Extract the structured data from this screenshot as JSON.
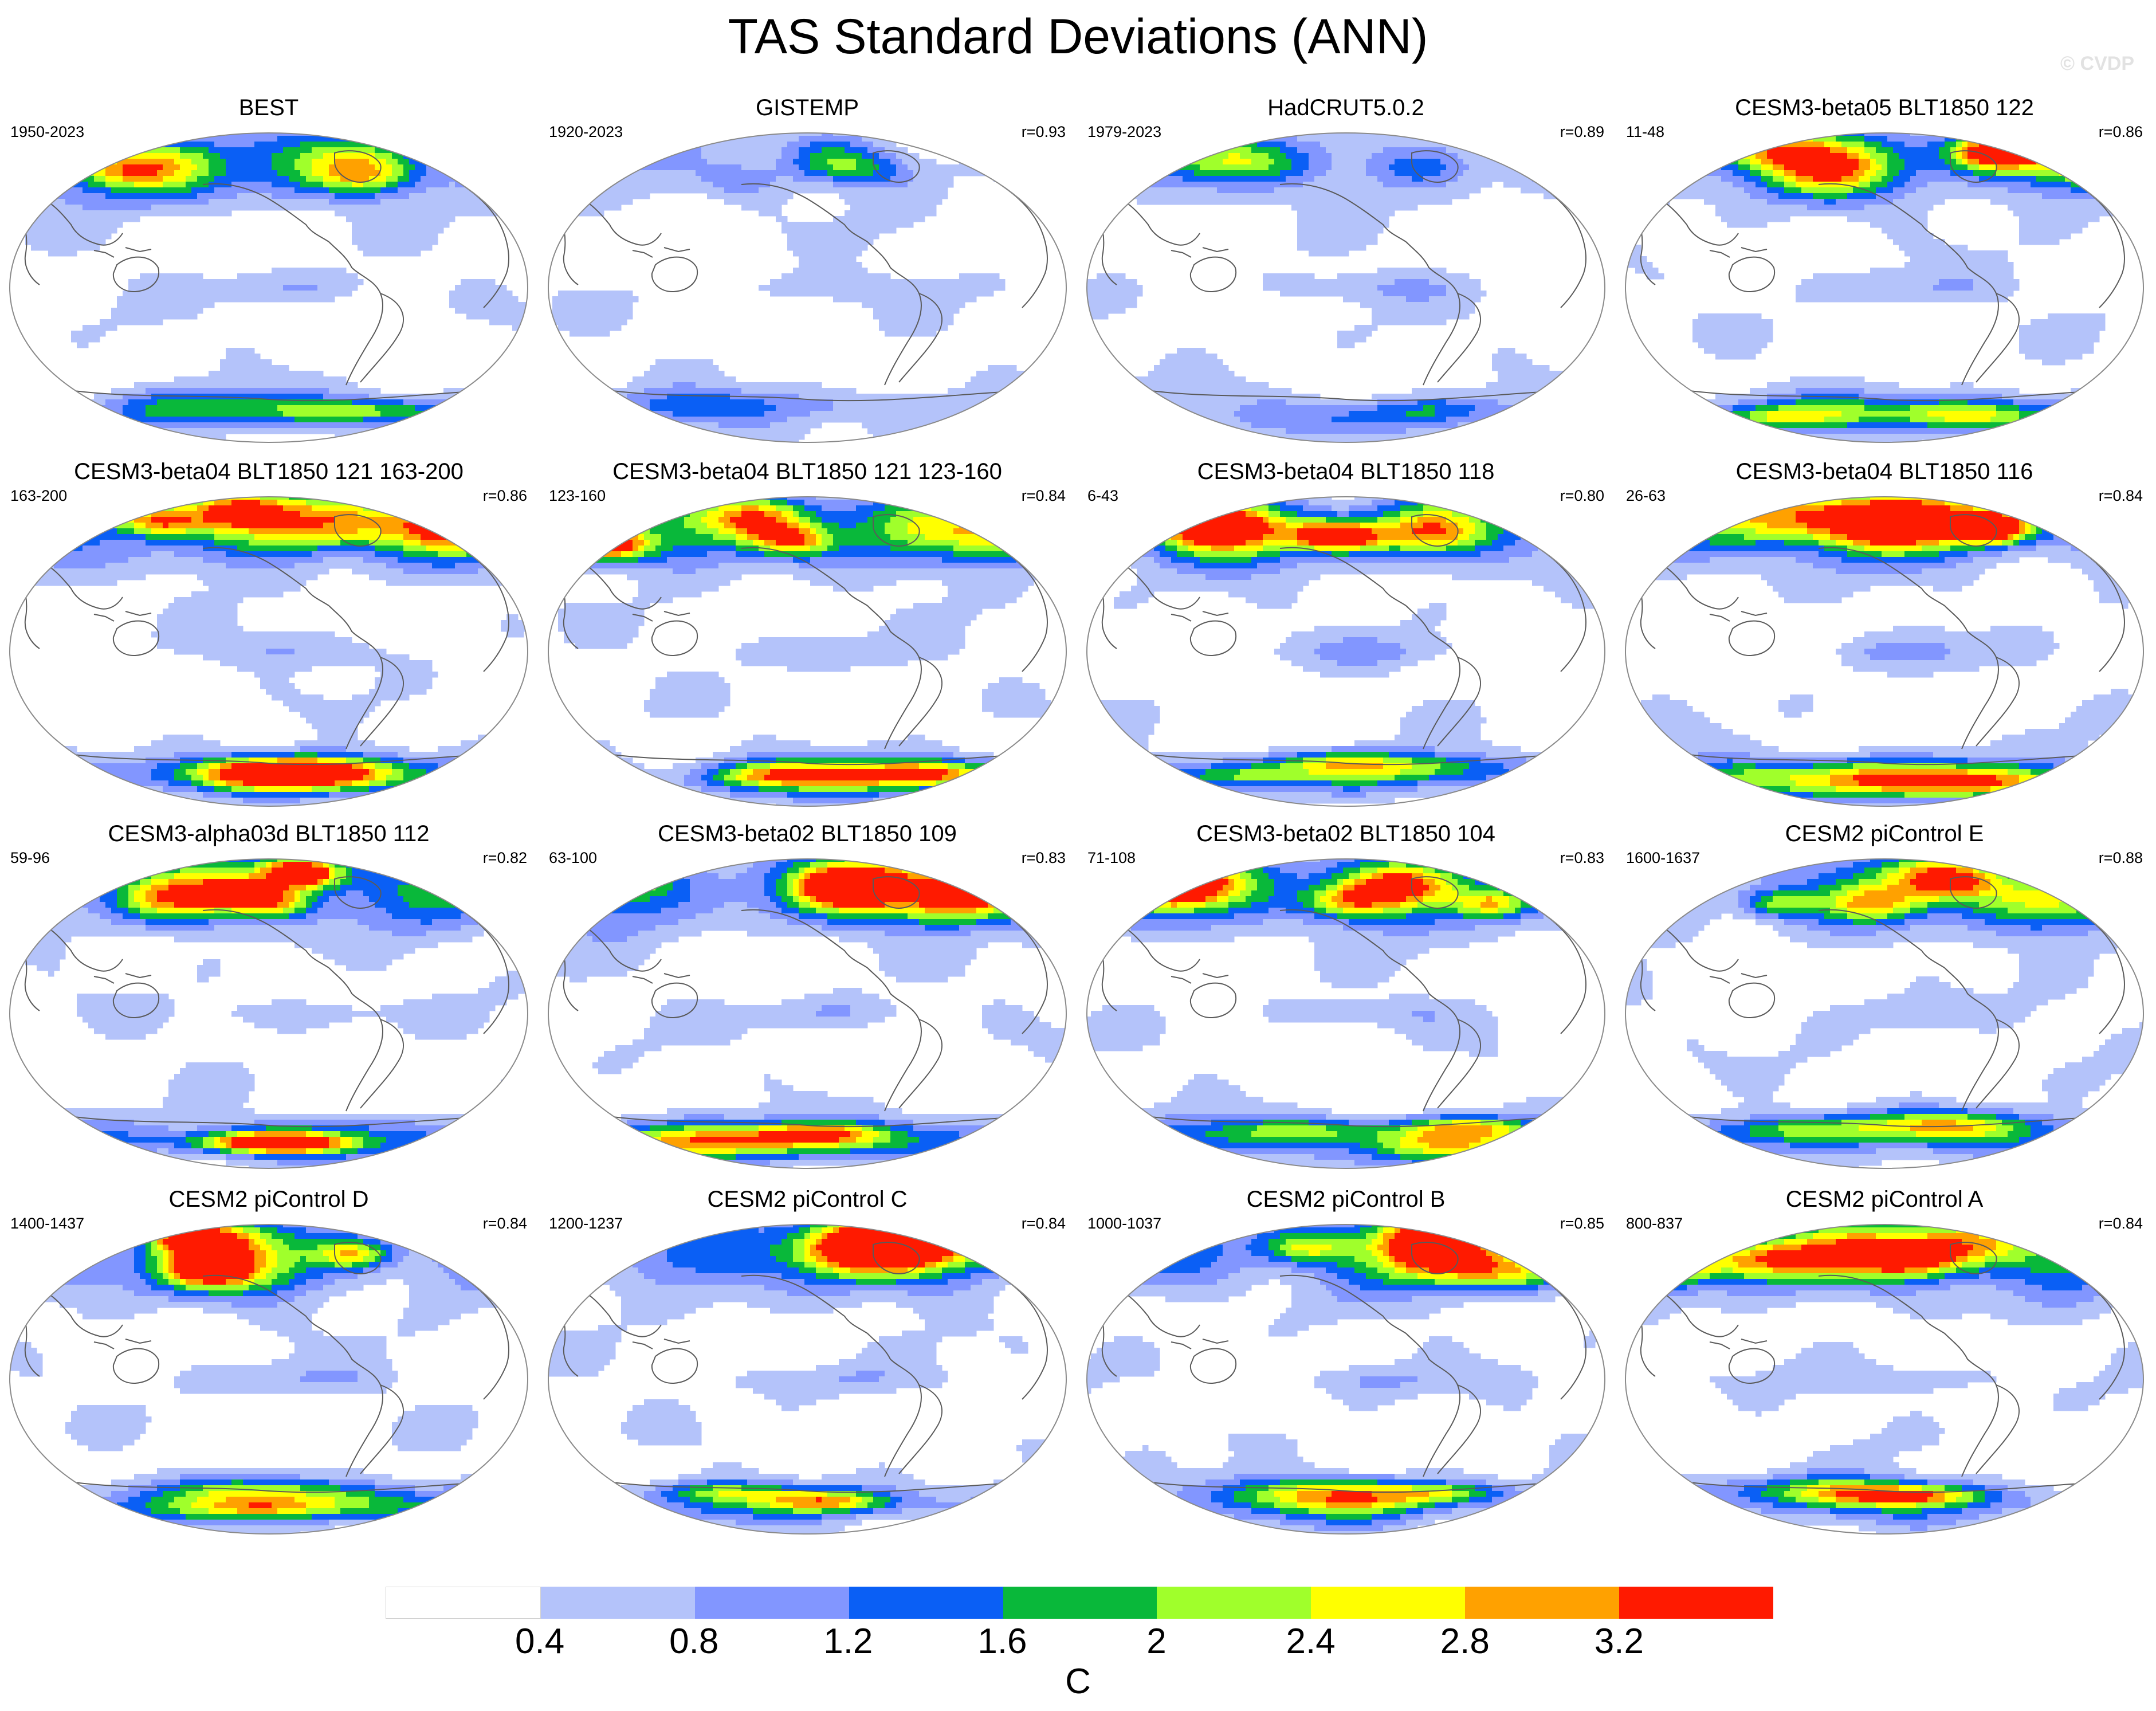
{
  "title": "TAS Standard Deviations (ANN)",
  "copyright": "© CVDP",
  "colors": {
    "levels": [
      "#ffffff",
      "#b4c3fa",
      "#8296ff",
      "#0a5ff5",
      "#09b83a",
      "#a0ff2b",
      "#ffff00",
      "#ffa100",
      "#ff1a00"
    ],
    "coast": "#5a5a5a",
    "map_border": "#8a8a8a"
  },
  "legend": {
    "ticks": [
      "0.4",
      "0.8",
      "1.2",
      "1.6",
      "2",
      "2.4",
      "2.8",
      "3.2"
    ],
    "units": "C"
  },
  "panels": [
    {
      "title": "BEST",
      "years": "1950-2023",
      "corr": "",
      "seed": 3,
      "strength": 0.95
    },
    {
      "title": "GISTEMP",
      "years": "1920-2023",
      "corr": "r=0.93",
      "seed": 7,
      "strength": 0.45
    },
    {
      "title": "HadCRUT5.0.2",
      "years": "1979-2023",
      "corr": "r=0.89",
      "seed": 11,
      "strength": 0.5
    },
    {
      "title": "CESM3-beta05 BLT1850 122",
      "years": "11-48",
      "corr": "r=0.86",
      "seed": 13,
      "strength": 1.3
    },
    {
      "title": "CESM3-beta04 BLT1850 121 163-200",
      "years": "163-200",
      "corr": "r=0.86",
      "seed": 17,
      "strength": 1.5
    },
    {
      "title": "CESM3-beta04 BLT1850 121 123-160",
      "years": "123-160",
      "corr": "r=0.84",
      "seed": 19,
      "strength": 1.5
    },
    {
      "title": "CESM3-beta04 BLT1850 118",
      "years": "6-43",
      "corr": "r=0.80",
      "seed": 23,
      "strength": 1.3
    },
    {
      "title": "CESM3-beta04 BLT1850 116",
      "years": "26-63",
      "corr": "r=0.84",
      "seed": 29,
      "strength": 1.4
    },
    {
      "title": "CESM3-alpha03d BLT1850 112",
      "years": "59-96",
      "corr": "r=0.82",
      "seed": 31,
      "strength": 1.4
    },
    {
      "title": "CESM3-beta02 BLT1850 109",
      "years": "63-100",
      "corr": "r=0.83",
      "seed": 37,
      "strength": 1.45
    },
    {
      "title": "CESM3-beta02 BLT1850 104",
      "years": "71-108",
      "corr": "r=0.83",
      "seed": 41,
      "strength": 1.45
    },
    {
      "title": "CESM2 piControl E",
      "years": "1600-1637",
      "corr": "r=0.88",
      "seed": 43,
      "strength": 1.15
    },
    {
      "title": "CESM2 piControl D",
      "years": "1400-1437",
      "corr": "r=0.84",
      "seed": 47,
      "strength": 1.35
    },
    {
      "title": "CESM2 piControl C",
      "years": "1200-1237",
      "corr": "r=0.84",
      "seed": 53,
      "strength": 1.2
    },
    {
      "title": "CESM2 piControl B",
      "years": "1000-1037",
      "corr": "r=0.85",
      "seed": 59,
      "strength": 1.2
    },
    {
      "title": "CESM2 piControl A",
      "years": "800-837",
      "corr": "r=0.84",
      "seed": 61,
      "strength": 1.35
    }
  ]
}
